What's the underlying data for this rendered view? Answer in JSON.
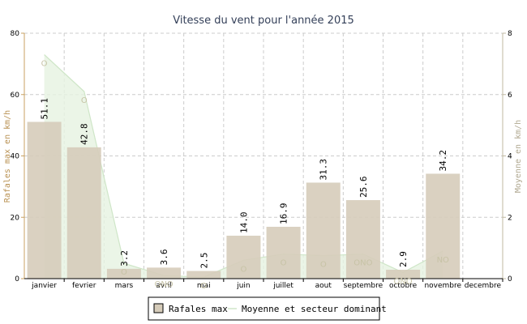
{
  "chart_data": {
    "type": "bar",
    "title": "Vitesse du vent pour l'année 2015",
    "ylabel": "Rafales max en km/h",
    "y2label": "Moyenne en km/h",
    "ylim": [
      0,
      80
    ],
    "y2lim": [
      0,
      8
    ],
    "yticks": [
      "0",
      "20",
      "40",
      "60",
      "80"
    ],
    "y2ticks": [
      "0",
      "2",
      "4",
      "6",
      "8"
    ],
    "grid": true,
    "legend_position": "bottom-center",
    "categories": [
      "janvier",
      "fevrier",
      "mars",
      "avril",
      "mai",
      "juin",
      "juillet",
      "aout",
      "septembre",
      "octobre",
      "novembre",
      "decembre"
    ],
    "series": [
      {
        "name": "Rafales max",
        "kind": "bar",
        "color": "#d6ccba",
        "values": [
          51.1,
          42.8,
          3.2,
          3.6,
          2.5,
          14.0,
          16.9,
          31.3,
          25.6,
          2.9,
          34.2,
          null
        ],
        "labels": [
          "51.1",
          "42.8",
          "3.2",
          "3.6",
          "2.5",
          "14.0",
          "16.9",
          "31.3",
          "25.6",
          "2.9",
          "34.2",
          ""
        ]
      },
      {
        "name": "Moyenne et secteur dominant",
        "kind": "area",
        "axis": "right",
        "color": "#e6f2e1",
        "line_color": "#cfe6c8",
        "values": [
          7.3,
          6.1,
          0.5,
          0.1,
          0.05,
          0.6,
          0.8,
          0.75,
          0.8,
          0.2,
          0.9,
          null
        ],
        "sectors": [
          "O",
          "O",
          "O",
          "ONO",
          "O",
          "O",
          "O",
          "O",
          "ONO",
          "ONO",
          "NO",
          ""
        ]
      }
    ]
  },
  "legend": {
    "bar_label": "Rafales max",
    "line_label": "Moyenne et secteur dominant"
  }
}
